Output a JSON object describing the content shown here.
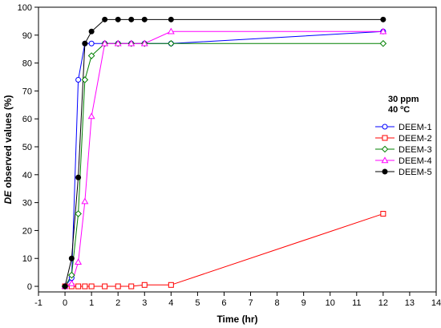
{
  "chart_data": {
    "type": "line",
    "xlabel": "Time (hr)",
    "ylabel_emph": "DE",
    "ylabel_rest": " observed values (%)",
    "xlim": [
      -1,
      14
    ],
    "ylim": [
      -2,
      100
    ],
    "x_ticks": [
      -1,
      0,
      1,
      2,
      3,
      4,
      5,
      6,
      7,
      8,
      9,
      10,
      11,
      12,
      13,
      14
    ],
    "y_ticks": [
      0,
      10,
      20,
      30,
      40,
      50,
      60,
      70,
      80,
      90,
      100
    ],
    "grid": false,
    "legend_position": "right",
    "legend_title": [
      "30 ppm",
      "40 ºC"
    ],
    "series": [
      {
        "name": "DEEM-1",
        "color": "#0000ff",
        "marker": "circle",
        "points": [
          [
            0,
            0
          ],
          [
            0.25,
            3
          ],
          [
            0.5,
            74
          ],
          [
            0.75,
            87
          ],
          [
            1,
            87
          ],
          [
            1.5,
            87
          ],
          [
            2,
            87
          ],
          [
            2.5,
            87
          ],
          [
            3,
            87
          ],
          [
            4,
            87
          ],
          [
            12,
            91.3
          ]
        ]
      },
      {
        "name": "DEEM-2",
        "color": "#ff0000",
        "marker": "square",
        "points": [
          [
            0,
            0
          ],
          [
            0.25,
            0
          ],
          [
            0.5,
            0
          ],
          [
            0.75,
            0
          ],
          [
            1,
            0
          ],
          [
            1.5,
            0
          ],
          [
            2,
            0
          ],
          [
            2.5,
            0
          ],
          [
            3,
            0.5
          ],
          [
            4,
            0.5
          ],
          [
            12,
            26
          ]
        ]
      },
      {
        "name": "DEEM-3",
        "color": "#008000",
        "marker": "diamond",
        "points": [
          [
            0,
            0
          ],
          [
            0.25,
            4
          ],
          [
            0.5,
            26
          ],
          [
            0.75,
            74
          ],
          [
            1,
            82.6
          ],
          [
            1.5,
            87
          ],
          [
            2,
            87
          ],
          [
            2.5,
            87
          ],
          [
            3,
            87
          ],
          [
            4,
            87
          ],
          [
            12,
            87
          ]
        ]
      },
      {
        "name": "DEEM-4",
        "color": "#ff00ff",
        "marker": "triangle",
        "points": [
          [
            0,
            0
          ],
          [
            0.25,
            1
          ],
          [
            0.5,
            8.7
          ],
          [
            0.75,
            30.4
          ],
          [
            1,
            60.9
          ],
          [
            1.5,
            87
          ],
          [
            2,
            87
          ],
          [
            2.5,
            87
          ],
          [
            3,
            87
          ],
          [
            4,
            91.3
          ],
          [
            12,
            91.3
          ]
        ]
      },
      {
        "name": "DEEM-5",
        "color": "#000000",
        "marker": "dot",
        "points": [
          [
            0,
            0
          ],
          [
            0.25,
            10
          ],
          [
            0.5,
            39
          ],
          [
            0.75,
            87
          ],
          [
            1,
            91.3
          ],
          [
            1.5,
            95.6
          ],
          [
            2,
            95.6
          ],
          [
            2.5,
            95.6
          ],
          [
            3,
            95.6
          ],
          [
            4,
            95.6
          ],
          [
            12,
            95.6
          ]
        ]
      }
    ]
  }
}
